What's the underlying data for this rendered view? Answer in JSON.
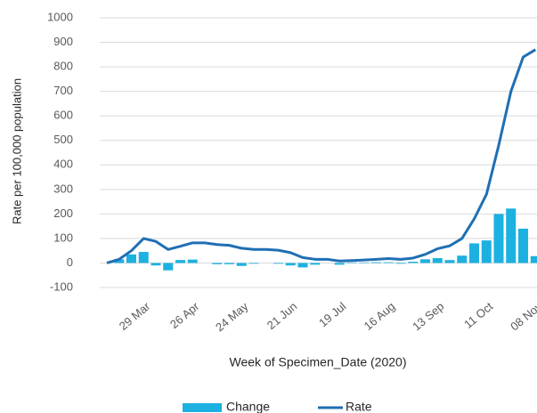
{
  "chart_data": {
    "type": "bar-line",
    "x_label": "Week of Specimen_Date (2020)",
    "y_label": "Rate per 100,000 population",
    "categories": [
      null,
      null,
      null,
      "29 Mar",
      null,
      null,
      null,
      "26 Apr",
      null,
      null,
      null,
      "24 May",
      null,
      null,
      null,
      "21 Jun",
      null,
      null,
      null,
      "19 Jul",
      null,
      null,
      null,
      "16 Aug",
      null,
      null,
      null,
      "13 Sep",
      null,
      null,
      null,
      "11 Oct",
      null,
      null,
      null,
      "08 Nov"
    ],
    "series": [
      {
        "name": "Change",
        "type": "bar",
        "color": "#1cb1e0",
        "values": [
          0,
          15,
          35,
          45,
          -10,
          -30,
          12,
          14,
          0,
          -5,
          -5,
          -12,
          -3,
          0,
          -3,
          -10,
          -18,
          -7,
          0,
          -7,
          2,
          2,
          3,
          3,
          -3,
          5,
          15,
          20,
          12,
          30,
          80,
          92,
          200,
          222,
          140,
          28
        ]
      },
      {
        "name": "Rate",
        "type": "line",
        "color": "#1f6fb4",
        "values": [
          0,
          15,
          50,
          100,
          88,
          55,
          68,
          82,
          82,
          75,
          72,
          60,
          55,
          55,
          52,
          42,
          22,
          15,
          15,
          8,
          10,
          12,
          15,
          18,
          15,
          20,
          35,
          58,
          70,
          100,
          180,
          280,
          480,
          700,
          840,
          870
        ]
      }
    ],
    "ylim": [
      -100,
      1000
    ],
    "yticks": [
      -100,
      0,
      100,
      200,
      300,
      400,
      500,
      600,
      700,
      800,
      900,
      1000
    ],
    "grid": true,
    "legend": "bottom"
  }
}
